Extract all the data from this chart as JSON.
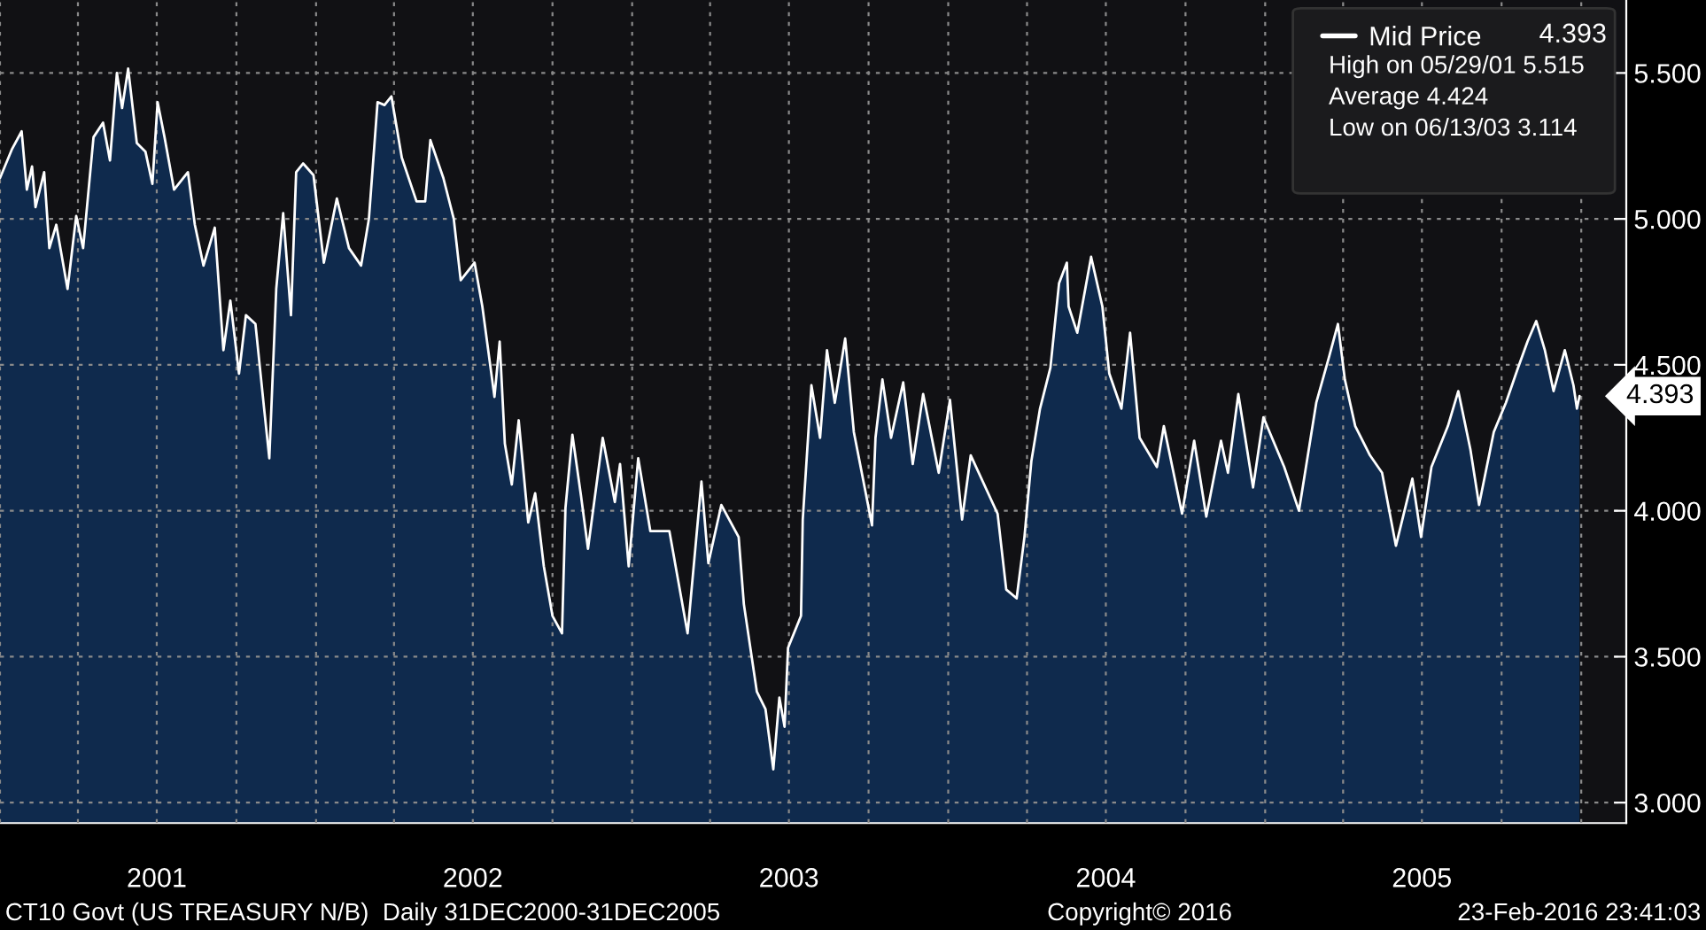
{
  "chart_data": {
    "type": "area",
    "x": [
      "2001-01-01",
      "2001-01-15",
      "2001-01-26",
      "2001-02-01",
      "2001-02-07",
      "2001-02-11",
      "2001-02-21",
      "2001-02-27",
      "2001-03-07",
      "2001-03-20",
      "2001-03-30",
      "2001-04-07",
      "2001-04-19",
      "2001-04-30",
      "2001-05-08",
      "2001-05-16",
      "2001-05-22",
      "2001-05-29",
      "2001-06-08",
      "2001-06-18",
      "2001-06-26",
      "2001-07-02",
      "2001-07-10",
      "2001-07-21",
      "2001-08-06",
      "2001-08-14",
      "2001-08-24",
      "2001-09-06",
      "2001-09-16",
      "2001-09-24",
      "2001-10-04",
      "2001-10-12",
      "2001-10-23",
      "2001-11-02",
      "2001-11-08",
      "2001-11-16",
      "2001-11-24",
      "2001-12-03",
      "2001-12-09",
      "2001-12-17",
      "2001-12-29",
      "2002-01-10",
      "2002-01-25",
      "2002-02-08",
      "2002-02-22",
      "2002-03-03",
      "2002-03-13",
      "2002-03-21",
      "2002-03-29",
      "2002-04-10",
      "2002-04-27",
      "2002-05-07",
      "2002-05-13",
      "2002-05-28",
      "2002-06-09",
      "2002-06-17",
      "2002-07-03",
      "2002-07-12",
      "2002-07-26",
      "2002-08-01",
      "2002-08-07",
      "2002-08-15",
      "2002-08-23",
      "2002-09-03",
      "2002-09-11",
      "2002-09-21",
      "2002-10-01",
      "2002-10-12",
      "2002-10-16",
      "2002-10-24",
      "2002-11-03",
      "2002-11-11",
      "2002-11-28",
      "2002-12-12",
      "2002-12-18",
      "2002-12-28",
      "2003-01-08",
      "2003-01-22",
      "2003-02-13",
      "2003-03-06",
      "2003-03-22",
      "2003-03-30",
      "2003-04-14",
      "2003-05-04",
      "2003-05-10",
      "2003-05-25",
      "2003-06-04",
      "2003-06-13",
      "2003-06-20",
      "2003-06-26",
      "2003-06-30",
      "2003-07-15",
      "2003-07-17",
      "2003-07-27",
      "2003-08-06",
      "2003-08-14",
      "2003-08-23",
      "2003-09-04",
      "2003-09-14",
      "2003-10-05",
      "2003-10-09",
      "2003-10-17",
      "2003-10-27",
      "2003-11-10",
      "2003-11-21",
      "2003-12-03",
      "2003-12-21",
      "2004-01-03",
      "2004-01-17",
      "2004-01-27",
      "2004-02-27",
      "2004-03-08",
      "2004-03-20",
      "2004-03-29",
      "2004-04-06",
      "2004-04-16",
      "2004-04-28",
      "2004-05-08",
      "2004-05-17",
      "2004-05-19",
      "2004-05-29",
      "2004-06-14",
      "2004-06-27",
      "2004-07-05",
      "2004-07-19",
      "2004-07-29",
      "2004-08-09",
      "2004-08-29",
      "2004-09-06",
      "2004-09-27",
      "2004-10-11",
      "2004-10-25",
      "2004-11-11",
      "2004-11-19",
      "2004-12-01",
      "2004-12-18",
      "2004-12-30",
      "2005-01-23",
      "2005-02-09",
      "2005-03-01",
      "2005-03-16",
      "2005-03-26",
      "2005-04-03",
      "2005-04-15",
      "2005-05-02",
      "2005-05-16",
      "2005-06-01",
      "2005-06-20",
      "2005-06-30",
      "2005-07-12",
      "2005-07-31",
      "2005-08-12",
      "2005-08-26",
      "2005-09-05",
      "2005-09-22",
      "2005-10-06",
      "2005-10-20",
      "2005-10-31",
      "2005-11-10",
      "2005-11-20",
      "2005-11-30",
      "2005-12-13",
      "2005-12-23",
      "2005-12-27",
      "2005-12-30"
    ],
    "series": [
      {
        "name": "Mid Price",
        "color": "#ffffff",
        "values": [
          5.14,
          5.24,
          5.3,
          5.1,
          5.18,
          5.04,
          5.16,
          4.9,
          4.98,
          4.76,
          5.01,
          4.9,
          5.28,
          5.33,
          5.2,
          5.5,
          5.38,
          5.515,
          5.26,
          5.23,
          5.12,
          5.4,
          5.28,
          5.1,
          5.16,
          4.98,
          4.84,
          4.97,
          4.55,
          4.72,
          4.47,
          4.67,
          4.64,
          4.35,
          4.18,
          4.76,
          5.02,
          4.67,
          5.16,
          5.19,
          5.15,
          4.85,
          5.07,
          4.9,
          4.84,
          5.0,
          5.4,
          5.39,
          5.42,
          5.21,
          5.06,
          5.06,
          5.27,
          5.14,
          5.0,
          4.79,
          4.85,
          4.7,
          4.39,
          4.58,
          4.23,
          4.09,
          4.31,
          3.96,
          4.06,
          3.81,
          3.64,
          3.58,
          4.01,
          4.26,
          4.05,
          3.87,
          4.25,
          4.03,
          4.16,
          3.81,
          4.18,
          3.93,
          3.93,
          3.58,
          4.1,
          3.82,
          4.02,
          3.91,
          3.68,
          3.38,
          3.32,
          3.114,
          3.36,
          3.26,
          3.53,
          3.64,
          3.97,
          4.43,
          4.25,
          4.55,
          4.37,
          4.59,
          4.27,
          3.95,
          4.25,
          4.45,
          4.25,
          4.44,
          4.16,
          4.4,
          4.13,
          4.38,
          3.97,
          4.19,
          3.99,
          3.73,
          3.7,
          3.91,
          4.17,
          4.35,
          4.49,
          4.78,
          4.85,
          4.7,
          4.61,
          4.87,
          4.7,
          4.47,
          4.35,
          4.61,
          4.25,
          4.15,
          4.29,
          3.99,
          4.24,
          3.98,
          4.24,
          4.13,
          4.4,
          4.08,
          4.32,
          4.15,
          4.0,
          4.37,
          4.53,
          4.64,
          4.45,
          4.29,
          4.19,
          4.13,
          3.88,
          4.11,
          3.91,
          4.15,
          4.29,
          4.41,
          4.21,
          4.02,
          4.27,
          4.37,
          4.49,
          4.58,
          4.65,
          4.55,
          4.41,
          4.55,
          4.43,
          4.35,
          4.393
        ]
      }
    ],
    "xlim": [
      "2001-01-01",
      "2006-02-22"
    ],
    "xticks": [
      {
        "value": "2001-01-01",
        "label": null
      },
      {
        "value": "2001-04-01",
        "label": null
      },
      {
        "value": "2001-07-01",
        "label": "2001"
      },
      {
        "value": "2001-10-01",
        "label": null
      },
      {
        "value": "2002-01-01",
        "label": null
      },
      {
        "value": "2002-04-01",
        "label": null
      },
      {
        "value": "2002-07-01",
        "label": "2002"
      },
      {
        "value": "2002-10-01",
        "label": null
      },
      {
        "value": "2003-01-01",
        "label": null
      },
      {
        "value": "2003-04-01",
        "label": null
      },
      {
        "value": "2003-07-01",
        "label": "2003"
      },
      {
        "value": "2003-10-01",
        "label": null
      },
      {
        "value": "2004-01-01",
        "label": null
      },
      {
        "value": "2004-04-01",
        "label": null
      },
      {
        "value": "2004-07-01",
        "label": "2004"
      },
      {
        "value": "2004-10-01",
        "label": null
      },
      {
        "value": "2005-01-01",
        "label": null
      },
      {
        "value": "2005-04-01",
        "label": null
      },
      {
        "value": "2005-07-01",
        "label": "2005"
      },
      {
        "value": "2005-10-01",
        "label": null
      },
      {
        "value": "2006-01-01",
        "label": null
      }
    ],
    "ylim": [
      2.93,
      5.75
    ],
    "yticks": [
      {
        "value": 3.0,
        "label": "3.000"
      },
      {
        "value": 3.5,
        "label": "3.500"
      },
      {
        "value": 4.0,
        "label": "4.000"
      },
      {
        "value": 4.5,
        "label": "4.500"
      },
      {
        "value": 5.0,
        "label": "5.000"
      },
      {
        "value": 5.5,
        "label": "5.500"
      }
    ],
    "grid": true,
    "legend": "top right",
    "annotations": [
      {
        "text": "4.393",
        "x": "2005-12-30",
        "y": 4.393
      },
      "4.393",
      "High on 05/29/01 5.515",
      "Average 4.424",
      "Low on 06/13/03 3.114",
      "CT10 Govt (US TREASURY N/B)  Daily 31DEC2000-31DEC2005",
      "Copyright© 2016",
      "23-Feb-2016 23:41:03"
    ]
  }
}
